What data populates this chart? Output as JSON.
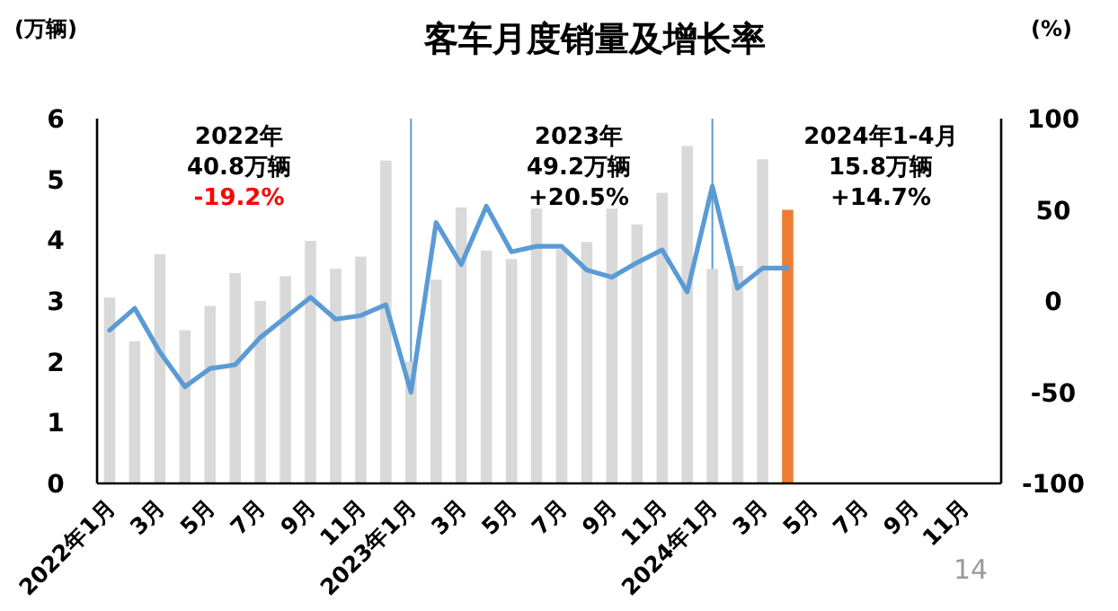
{
  "chart_data": {
    "type": "bar",
    "title": "客车月度销量及增长率",
    "ylabel": "(万辆)",
    "y2label": "(%)",
    "categories": [
      "2022年1月",
      null,
      "3月",
      null,
      "5月",
      null,
      "7月",
      null,
      "9月",
      null,
      "11月",
      null,
      "2023年1月",
      null,
      "3月",
      null,
      "5月",
      null,
      "7月",
      null,
      "9月",
      null,
      "11月",
      null,
      "2024年1月",
      null,
      "3月",
      null,
      "5月",
      null,
      "7月",
      null,
      "9月",
      null,
      "11月",
      null
    ],
    "series": [
      {
        "colors": [
          "#d9d9d9",
          "#d9d9d9",
          "#d9d9d9",
          "#d9d9d9",
          "#d9d9d9",
          "#d9d9d9",
          "#d9d9d9",
          "#d9d9d9",
          "#d9d9d9",
          "#d9d9d9",
          "#d9d9d9",
          "#d9d9d9",
          "#d9d9d9",
          "#d9d9d9",
          "#d9d9d9",
          "#d9d9d9",
          "#d9d9d9",
          "#d9d9d9",
          "#d9d9d9",
          "#d9d9d9",
          "#d9d9d9",
          "#d9d9d9",
          "#d9d9d9",
          "#d9d9d9",
          "#d9d9d9",
          "#d9d9d9",
          "#d9d9d9",
          "#ed7d31",
          null,
          null,
          null,
          null,
          null,
          null,
          null,
          null
        ],
        "values": [
          3.06,
          2.34,
          3.77,
          2.52,
          2.92,
          3.46,
          3.0,
          3.41,
          3.99,
          3.53,
          3.73,
          5.31,
          2.0,
          3.35,
          4.54,
          3.83,
          3.69,
          4.52,
          3.85,
          3.97,
          4.52,
          4.26,
          4.78,
          5.55,
          3.53,
          3.58,
          5.33,
          4.5,
          null,
          null,
          null,
          null,
          null,
          null,
          null,
          null
        ]
      },
      {
        "type": "line",
        "axis": "y2",
        "color": "#5b9bd5",
        "values": [
          -16,
          -4,
          -28,
          -47,
          -37,
          -35,
          -20,
          -9,
          2,
          -10,
          -8,
          -2,
          -50,
          43,
          20,
          52,
          27,
          30,
          30,
          17,
          13,
          21,
          28,
          5,
          63,
          7,
          18,
          18,
          null,
          null,
          null,
          null,
          null,
          null,
          null,
          null
        ]
      }
    ],
    "ylim": [
      0,
      6
    ],
    "yticks": [
      0,
      1,
      2,
      3,
      4,
      5,
      6
    ],
    "y2lim": [
      -100,
      100
    ],
    "y2ticks": [
      -100,
      -50,
      0,
      50,
      100
    ],
    "ref_lines": [
      {
        "axis": "x",
        "value": "2023年1月",
        "color": "#5b9bd5"
      },
      {
        "axis": "x",
        "value": "2024年1月",
        "color": "#5b9bd5"
      }
    ],
    "annotations": [
      "2022年",
      "40.8万辆",
      "-19.2%",
      "2023年",
      "49.2万辆",
      "+20.5%",
      "2024年1-4月",
      "15.8万辆",
      "+14.7%",
      "14"
    ],
    "grid": false,
    "marker": "none",
    "line_style": "solid"
  }
}
